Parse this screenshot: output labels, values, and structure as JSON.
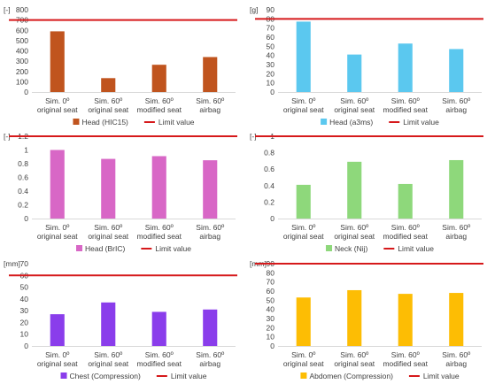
{
  "chart_data": [
    {
      "type": "bar",
      "unit": "[-]",
      "categories": [
        [
          "Sim. 0º",
          "original seat"
        ],
        [
          "Sim. 60º",
          "original seat"
        ],
        [
          "Sim. 60º",
          "modified seat"
        ],
        [
          "Sim. 60º",
          "airbag"
        ]
      ],
      "values": [
        590,
        135,
        265,
        340
      ],
      "limit": 700,
      "ylim": [
        0,
        800
      ],
      "ticks": [
        "0",
        "100",
        "200",
        "300",
        "400",
        "500",
        "600",
        "700",
        "800"
      ],
      "tick_values": [
        0,
        100,
        200,
        300,
        400,
        500,
        600,
        700,
        800
      ],
      "legend": [
        "Head (HIC15)",
        "Limit value"
      ],
      "bar_color": "#C0541E",
      "limit_color": "#D6191B"
    },
    {
      "type": "bar",
      "unit": "[g]",
      "categories": [
        [
          "Sim. 0º",
          "original seat"
        ],
        [
          "Sim. 60º",
          "original seat"
        ],
        [
          "Sim. 60º",
          "modified seat"
        ],
        [
          "Sim. 60º",
          "airbag"
        ]
      ],
      "values": [
        77,
        41,
        53,
        47
      ],
      "limit": 80,
      "ylim": [
        0,
        90
      ],
      "ticks": [
        "0",
        "10",
        "20",
        "30",
        "40",
        "50",
        "60",
        "70",
        "80",
        "90"
      ],
      "tick_values": [
        0,
        10,
        20,
        30,
        40,
        50,
        60,
        70,
        80,
        90
      ],
      "legend": [
        "Head (a3ms)",
        "Limit value"
      ],
      "bar_color": "#5BC8EF",
      "limit_color": "#D6191B"
    },
    {
      "type": "bar",
      "unit": "[-]",
      "categories": [
        [
          "Sim. 0º",
          "original seat"
        ],
        [
          "Sim. 60º",
          "original seat"
        ],
        [
          "Sim. 60º",
          "modified seat"
        ],
        [
          "Sim. 60º",
          "airbag"
        ]
      ],
      "values": [
        1.0,
        0.87,
        0.91,
        0.85
      ],
      "limit": 1.2,
      "ylim": [
        0,
        1.2
      ],
      "ticks": [
        "0",
        "0.2",
        "0.4",
        "0.6",
        "0.8",
        "1",
        "1.2"
      ],
      "tick_values": [
        0,
        0.2,
        0.4,
        0.6,
        0.8,
        1.0,
        1.2
      ],
      "legend": [
        "Head (BrIC)",
        "Limit value"
      ],
      "bar_color": "#D867C6",
      "limit_color": "#D6191B"
    },
    {
      "type": "bar",
      "unit": "[-]",
      "categories": [
        [
          "Sim. 0º",
          "original seat"
        ],
        [
          "Sim. 60º",
          "original seat"
        ],
        [
          "Sim. 60º",
          "modified seat"
        ],
        [
          "Sim. 60º",
          "airbag"
        ]
      ],
      "values": [
        0.41,
        0.69,
        0.42,
        0.71
      ],
      "limit": 1,
      "ylim": [
        0,
        1
      ],
      "ticks": [
        "0",
        "0.2",
        "0.4",
        "0.6",
        "0.8",
        "1"
      ],
      "tick_values": [
        0,
        0.2,
        0.4,
        0.6,
        0.8,
        1.0
      ],
      "legend": [
        "Neck (Nij)",
        "Limit value"
      ],
      "bar_color": "#8ED87B",
      "limit_color": "#D6191B"
    },
    {
      "type": "bar",
      "unit": "[mm]",
      "categories": [
        [
          "Sim. 0º",
          "original seat"
        ],
        [
          "Sim. 60º",
          "original seat"
        ],
        [
          "Sim. 60º",
          "modified seat"
        ],
        [
          "Sim. 60º",
          "airbag"
        ]
      ],
      "values": [
        27,
        37,
        29,
        31
      ],
      "limit": 60,
      "ylim": [
        0,
        70
      ],
      "ticks": [
        "0",
        "10",
        "20",
        "30",
        "40",
        "50",
        "60",
        "70"
      ],
      "tick_values": [
        0,
        10,
        20,
        30,
        40,
        50,
        60,
        70
      ],
      "legend": [
        "Chest (Compression)",
        "Limit value"
      ],
      "bar_color": "#8A3DEB",
      "limit_color": "#D6191B"
    },
    {
      "type": "bar",
      "unit": "[mm]",
      "categories": [
        [
          "Sim. 0º",
          "original seat"
        ],
        [
          "Sim. 60º",
          "original seat"
        ],
        [
          "Sim. 60º",
          "modified seat"
        ],
        [
          "Sim. 60º",
          "airbag"
        ]
      ],
      "values": [
        53,
        61,
        57,
        58
      ],
      "limit": 90,
      "ylim": [
        0,
        90
      ],
      "ticks": [
        "0",
        "10",
        "20",
        "30",
        "40",
        "50",
        "60",
        "70",
        "80",
        "90"
      ],
      "tick_values": [
        0,
        10,
        20,
        30,
        40,
        50,
        60,
        70,
        80,
        90
      ],
      "legend": [
        "Abdomen (Compression)",
        "Limit value"
      ],
      "bar_color": "#FDBD04",
      "limit_color": "#D6191B"
    }
  ]
}
